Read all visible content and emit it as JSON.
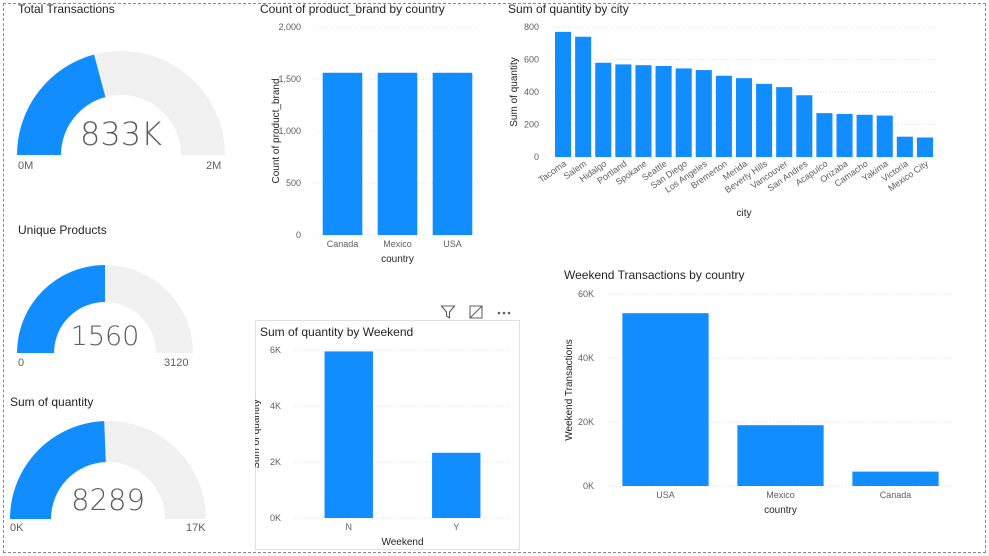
{
  "colors": {
    "bar": "#118DFF",
    "gauge_track": "#F0F0F0",
    "axis_text": "#605e5c",
    "grid": "#e1dfdd"
  },
  "gauges": [
    {
      "title": "Total Transactions",
      "value_label": "833K",
      "min_label": "0M",
      "max_label": "2M",
      "fraction": 0.4165
    },
    {
      "title": "Unique Products",
      "value_label": "1560",
      "min_label": "0",
      "max_label": "3120",
      "fraction": 0.5
    },
    {
      "title": "Sum of quantity",
      "value_label": "8289",
      "min_label": "0K",
      "max_label": "17K",
      "fraction": 0.4876
    }
  ],
  "visual_header": {
    "icons": [
      "filter-icon",
      "focus-mode-icon",
      "more-options-icon"
    ]
  },
  "chart_data": [
    {
      "id": "brand_by_country",
      "type": "bar",
      "title": "Count of product_brand by country",
      "xlabel": "country",
      "ylabel": "Count of product_brand",
      "categories": [
        "Canada",
        "Mexico",
        "USA"
      ],
      "values": [
        1560,
        1560,
        1560
      ],
      "ylim": [
        0,
        2000
      ],
      "yticks": [
        0,
        500,
        1000,
        1500,
        2000
      ],
      "ytick_labels": [
        "0",
        "500",
        "1,000",
        "1,500",
        "2,000"
      ],
      "grid": true
    },
    {
      "id": "quantity_by_city",
      "type": "bar",
      "title": "Sum of quantity by city",
      "xlabel": "city",
      "ylabel": "Sum of quantity",
      "categories": [
        "Tacoma",
        "Salem",
        "Hidalgo",
        "Portland",
        "Spokane",
        "Seattle",
        "San Diego",
        "Los Angeles",
        "Bremerton",
        "Merida",
        "Beverly Hills",
        "Vancouver",
        "San Andres",
        "Acapulco",
        "Orizaba",
        "Camacho",
        "Yakima",
        "Victoria",
        "Mexico City"
      ],
      "values": [
        770,
        740,
        580,
        570,
        565,
        560,
        545,
        535,
        500,
        485,
        450,
        430,
        380,
        270,
        265,
        260,
        255,
        125,
        120
      ],
      "ylim": [
        0,
        800
      ],
      "yticks": [
        0,
        200,
        400,
        600,
        800
      ],
      "ytick_labels": [
        "0",
        "200",
        "400",
        "600",
        "800"
      ],
      "grid": true
    },
    {
      "id": "quantity_by_weekend",
      "type": "bar",
      "title": "Sum of quantity by Weekend",
      "xlabel": "Weekend",
      "ylabel": "Sum of quantity",
      "categories": [
        "N",
        "Y"
      ],
      "values": [
        5950,
        2330
      ],
      "ylim": [
        0,
        6000
      ],
      "yticks": [
        0,
        2000,
        4000,
        6000
      ],
      "ytick_labels": [
        "0K",
        "2K",
        "4K",
        "6K"
      ],
      "grid": true
    },
    {
      "id": "weekend_tx_by_country",
      "type": "bar",
      "title": "Weekend Transactions by country",
      "xlabel": "country",
      "ylabel": "Weekend Transactions",
      "categories": [
        "USA",
        "Mexico",
        "Canada"
      ],
      "values": [
        54000,
        19000,
        4500
      ],
      "ylim": [
        0,
        60000
      ],
      "yticks": [
        0,
        20000,
        40000,
        60000
      ],
      "ytick_labels": [
        "0K",
        "20K",
        "40K",
        "60K"
      ],
      "grid": true
    }
  ]
}
